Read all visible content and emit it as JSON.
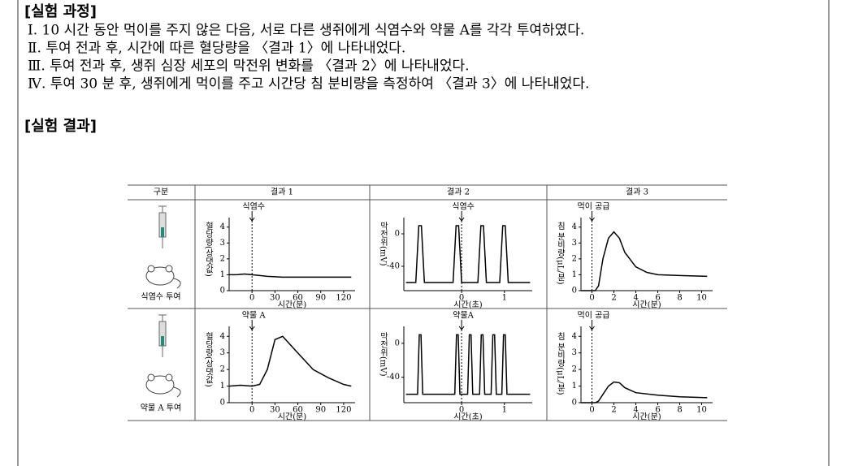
{
  "process": {
    "title": "[실험 과정]",
    "steps": [
      "Ⅰ. 10 시간 동안 먹이를 주지 않은 다음, 서로 다른 생쥐에게 식염수와 약물 A를 각각 투여하였다.",
      "Ⅱ. 투여 전과 후, 시간에 따른 혈당량을 〈결과 1〉에 나타내었다.",
      "Ⅲ. 투여 전과 후, 생쥐 심장 세포의 막전위 변화를 〈결과 2〉에 나타내었다.",
      "Ⅳ. 투여 30 분 후, 생쥐에게 먹이를 주고 시간당 침 분비량을 측정하여 〈결과 3〉에 나타내었다."
    ]
  },
  "results": {
    "title": "[실험 결과]",
    "table": {
      "header": [
        "구분",
        "결과 1",
        "결과 2",
        "결과 3"
      ],
      "rows": [
        {
          "label": "식염수 투여",
          "charts": [
            {
              "type": "line",
              "color": "#000000",
              "annotation": {
                "text": "식염수",
                "x": 0
              },
              "y_label": "혈당량(상댓값)",
              "x_label": "시간(분)",
              "x": [
                -30,
                -20,
                -10,
                0,
                10,
                20,
                40,
                60,
                80,
                100,
                120,
                130
              ],
              "values": [
                1,
                1,
                1.05,
                1,
                0.95,
                0.9,
                0.85,
                0.85,
                0.85,
                0.85,
                0.85,
                0.85
              ],
              "xlim": [
                -30,
                135
              ],
              "ylim": [
                0,
                4.6
              ],
              "xticks": [
                0,
                30,
                60,
                90,
                120
              ],
              "yticks": [
                0,
                1,
                2,
                3,
                4
              ]
            },
            {
              "type": "line",
              "color": "#000000",
              "annotation": {
                "text": "식염수",
                "x": 0
              },
              "y_label": "막전위(mV)",
              "x_label": "시간(초)",
              "x": [
                -1.3,
                -1.07,
                -1.0,
                -0.94,
                -0.87,
                -0.2,
                -0.13,
                -0.07,
                0,
                0.38,
                0.45,
                0.51,
                0.58,
                0.89,
                0.96,
                1.02,
                1.09,
                1.6
              ],
              "values": [
                -60,
                -60,
                10,
                10,
                -60,
                -60,
                10,
                10,
                -60,
                -60,
                10,
                10,
                -60,
                -60,
                10,
                10,
                -60,
                -60
              ],
              "xlim": [
                -1.35,
                1.65
              ],
              "ylim": [
                -70,
                20
              ],
              "xticks": [
                0,
                1
              ],
              "yticks": [
                -40,
                0
              ]
            },
            {
              "type": "line",
              "color": "#000000",
              "annotation": {
                "text": "먹이 공급",
                "x": 0
              },
              "y_label": "침 분비량(μL/분)",
              "x_label": "시간(분)",
              "x": [
                -1,
                0.3,
                0.6,
                1,
                1.5,
                2,
                2.5,
                3,
                4,
                5,
                6,
                8,
                10.5
              ],
              "values": [
                0,
                0,
                0.3,
                2,
                3.3,
                3.7,
                3.3,
                2.4,
                1.5,
                1.15,
                1.0,
                0.95,
                0.9
              ],
              "xlim": [
                -1,
                11
              ],
              "ylim": [
                0,
                4.6
              ],
              "xticks": [
                0,
                2,
                4,
                6,
                8,
                10
              ],
              "yticks": [
                0,
                1,
                2,
                3,
                4
              ]
            }
          ]
        },
        {
          "label": "약물 A 투여",
          "charts": [
            {
              "type": "line",
              "color": "#000000",
              "annotation": {
                "text": "약물 A",
                "x": 0
              },
              "y_label": "혈당량(상댓값)",
              "x_label": "시간(분)",
              "x": [
                -30,
                -15,
                0,
                10,
                20,
                30,
                40,
                60,
                80,
                100,
                120,
                130
              ],
              "values": [
                1,
                1.05,
                1,
                1.1,
                2,
                3.8,
                4,
                3,
                2,
                1.5,
                1.1,
                1
              ],
              "xlim": [
                -30,
                135
              ],
              "ylim": [
                0,
                4.6
              ],
              "xticks": [
                0,
                30,
                60,
                90,
                120
              ],
              "yticks": [
                0,
                1,
                2,
                3,
                4
              ]
            },
            {
              "type": "line",
              "color": "#000000",
              "annotation": {
                "text": "약물A",
                "x": 0
              },
              "y_label": "막전위(mV)",
              "x_label": "시간(초)",
              "x": [
                -1.3,
                -1.03,
                -0.99,
                -0.95,
                -0.91,
                -0.16,
                -0.12,
                -0.08,
                -0.04,
                0.14,
                0.18,
                0.22,
                0.26,
                0.42,
                0.46,
                0.5,
                0.54,
                0.69,
                0.73,
                0.77,
                0.81,
                0.94,
                0.98,
                1.02,
                1.06,
                1.6
              ],
              "values": [
                -60,
                -60,
                10,
                10,
                -60,
                -60,
                10,
                10,
                -60,
                -60,
                10,
                10,
                -60,
                -60,
                10,
                10,
                -60,
                -60,
                10,
                10,
                -60,
                -60,
                10,
                10,
                -60,
                -60
              ],
              "xlim": [
                -1.35,
                1.65
              ],
              "ylim": [
                -70,
                20
              ],
              "xticks": [
                0,
                1
              ],
              "yticks": [
                -40,
                0
              ]
            },
            {
              "type": "line",
              "color": "#000000",
              "annotation": {
                "text": "먹이 공급",
                "x": 0
              },
              "y_label": "침 분비량(μL/분)",
              "x_label": "시간(분)",
              "x": [
                -1,
                0.3,
                0.6,
                1,
                1.5,
                2,
                2.5,
                3,
                4,
                6,
                8,
                10.5
              ],
              "values": [
                0,
                0,
                0.1,
                0.5,
                1,
                1.25,
                1.2,
                0.9,
                0.6,
                0.45,
                0.35,
                0.3
              ],
              "xlim": [
                -1,
                11
              ],
              "ylim": [
                0,
                4.6
              ],
              "xticks": [
                0,
                2,
                4,
                6,
                8,
                10
              ],
              "yticks": [
                0,
                1,
                2,
                3,
                4
              ]
            }
          ]
        }
      ]
    }
  }
}
